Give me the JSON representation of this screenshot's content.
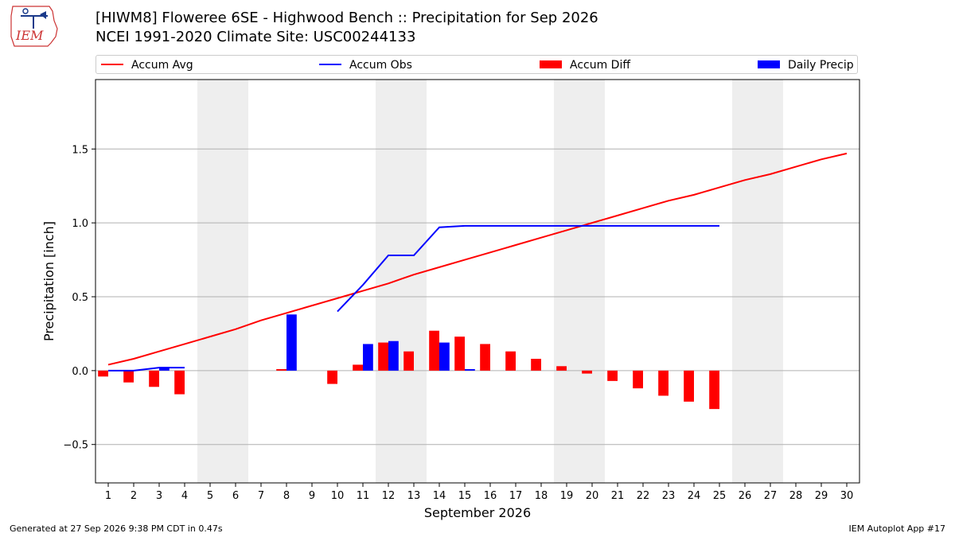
{
  "header": {
    "logo_text": "IEM",
    "title_line1": "[HIWM8] Floweree 6SE - Highwood Bench :: Precipitation for Sep 2026",
    "title_line2": "NCEI 1991-2020 Climate Site: USC00244133"
  },
  "legend": {
    "items": [
      {
        "label": "Accum Avg",
        "kind": "line",
        "color": "#ff0000"
      },
      {
        "label": "Accum Obs",
        "kind": "line",
        "color": "#0000ff"
      },
      {
        "label": "Accum Diff",
        "kind": "patch",
        "color": "#ff0000"
      },
      {
        "label": "Daily Precip",
        "kind": "patch",
        "color": "#0000ff"
      }
    ]
  },
  "footer": {
    "generated": "Generated at 27 Sep 2026 9:38 PM CDT in 0.47s",
    "app": "IEM Autoplot App #17"
  },
  "chart_data": {
    "type": "bar",
    "xlabel": "September 2026",
    "ylabel": "Precipitation [inch]",
    "xlim": [
      0.5,
      30.5
    ],
    "ylim": [
      -0.76,
      1.97
    ],
    "x_ticks": [
      1,
      2,
      3,
      4,
      5,
      6,
      7,
      8,
      9,
      10,
      11,
      12,
      13,
      14,
      15,
      16,
      17,
      18,
      19,
      20,
      21,
      22,
      23,
      24,
      25,
      26,
      27,
      28,
      29,
      30
    ],
    "y_ticks": [
      -0.5,
      0.0,
      0.5,
      1.0,
      1.5
    ],
    "y_tick_labels": [
      "−0.5",
      "0.0",
      "0.5",
      "1.0",
      "1.5"
    ],
    "grid": "horizontal",
    "weekend_shading": [
      [
        5,
        6
      ],
      [
        12,
        13
      ],
      [
        19,
        20
      ],
      [
        26,
        27
      ]
    ],
    "colors": {
      "avg": "#ff0000",
      "obs": "#0000ff",
      "diff": "#ff0000",
      "daily": "#0000ff",
      "weekend": "#eeeeee"
    },
    "series": [
      {
        "name": "Accum Avg",
        "kind": "line",
        "x": [
          1,
          2,
          3,
          4,
          5,
          6,
          7,
          8,
          9,
          10,
          11,
          12,
          13,
          14,
          15,
          16,
          17,
          18,
          19,
          20,
          21,
          22,
          23,
          24,
          25,
          26,
          27,
          28,
          29,
          30
        ],
        "values": [
          0.04,
          0.08,
          0.13,
          0.18,
          0.23,
          0.28,
          0.34,
          0.39,
          0.44,
          0.49,
          0.54,
          0.59,
          0.65,
          0.7,
          0.75,
          0.8,
          0.85,
          0.9,
          0.95,
          1.0,
          1.05,
          1.1,
          1.15,
          1.19,
          1.24,
          1.29,
          1.33,
          1.38,
          1.43,
          1.47
        ]
      },
      {
        "name": "Accum Obs",
        "kind": "line",
        "segments": [
          {
            "x": [
              1,
              2,
              3,
              4
            ],
            "values": [
              0.0,
              0.0,
              0.02,
              0.02
            ]
          },
          {
            "x": [
              10,
              11,
              12,
              13,
              14,
              15,
              16,
              17,
              18,
              19,
              20,
              21,
              22,
              23,
              24,
              25
            ],
            "values": [
              0.4,
              0.58,
              0.78,
              0.78,
              0.97,
              0.98,
              0.98,
              0.98,
              0.98,
              0.98,
              0.98,
              0.98,
              0.98,
              0.98,
              0.98,
              0.98
            ]
          }
        ]
      },
      {
        "name": "Accum Diff",
        "kind": "bar",
        "x": [
          1,
          2,
          3,
          4,
          8,
          10,
          11,
          12,
          13,
          14,
          15,
          16,
          17,
          18,
          19,
          20,
          21,
          22,
          23,
          24,
          25
        ],
        "values": [
          -0.04,
          -0.08,
          -0.11,
          -0.16,
          0.01,
          -0.09,
          0.04,
          0.19,
          0.13,
          0.27,
          0.23,
          0.18,
          0.13,
          0.08,
          0.03,
          -0.02,
          -0.07,
          -0.12,
          -0.17,
          -0.21,
          -0.26
        ]
      },
      {
        "name": "Daily Precip",
        "kind": "bar",
        "x": [
          3,
          8,
          11,
          12,
          14,
          15
        ],
        "values": [
          0.02,
          0.38,
          0.18,
          0.2,
          0.19,
          0.01
        ]
      }
    ]
  }
}
